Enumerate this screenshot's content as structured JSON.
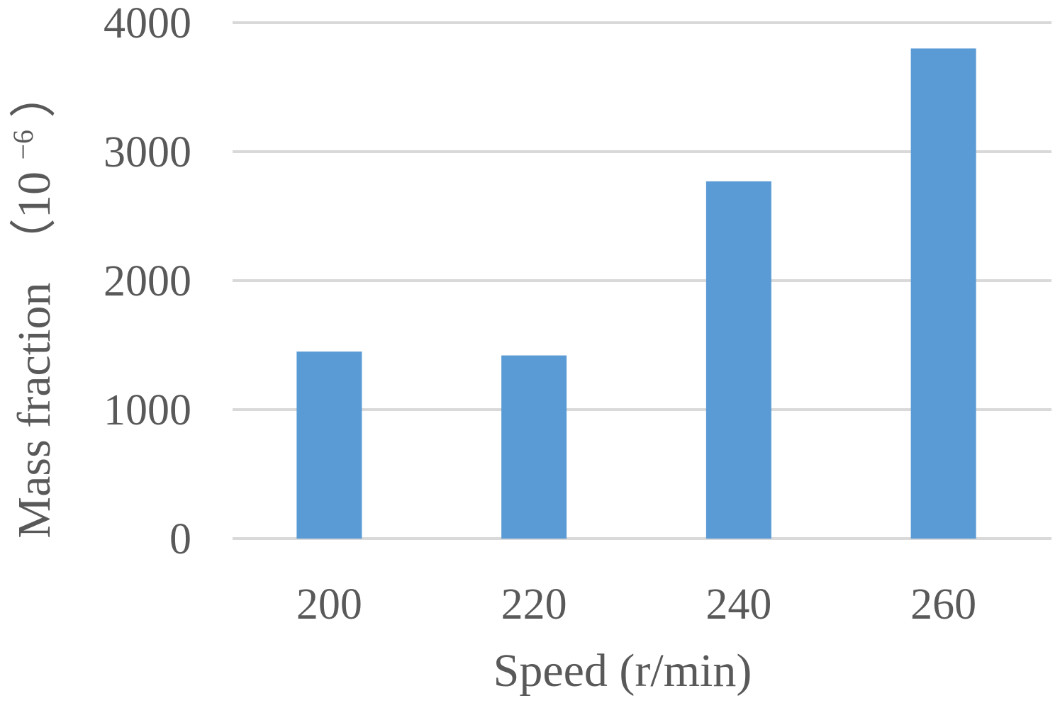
{
  "chart_data": {
    "type": "bar",
    "categories": [
      "200",
      "220",
      "240",
      "260"
    ],
    "values": [
      1450,
      1420,
      2770,
      3800
    ],
    "xlabel": "Speed (r/min)",
    "ylabel": "Mass fraction",
    "ylabel_unit_base": "（10",
    "ylabel_unit_exp": "−6",
    "ylabel_unit_close": "）",
    "ylim": [
      0,
      4000
    ],
    "yticks": [
      "0",
      "1000",
      "2000",
      "3000",
      "4000"
    ],
    "grid": true,
    "bar_color": "#5b9bd5",
    "grid_color": "#d9d9d9",
    "text_color": "#595959"
  }
}
